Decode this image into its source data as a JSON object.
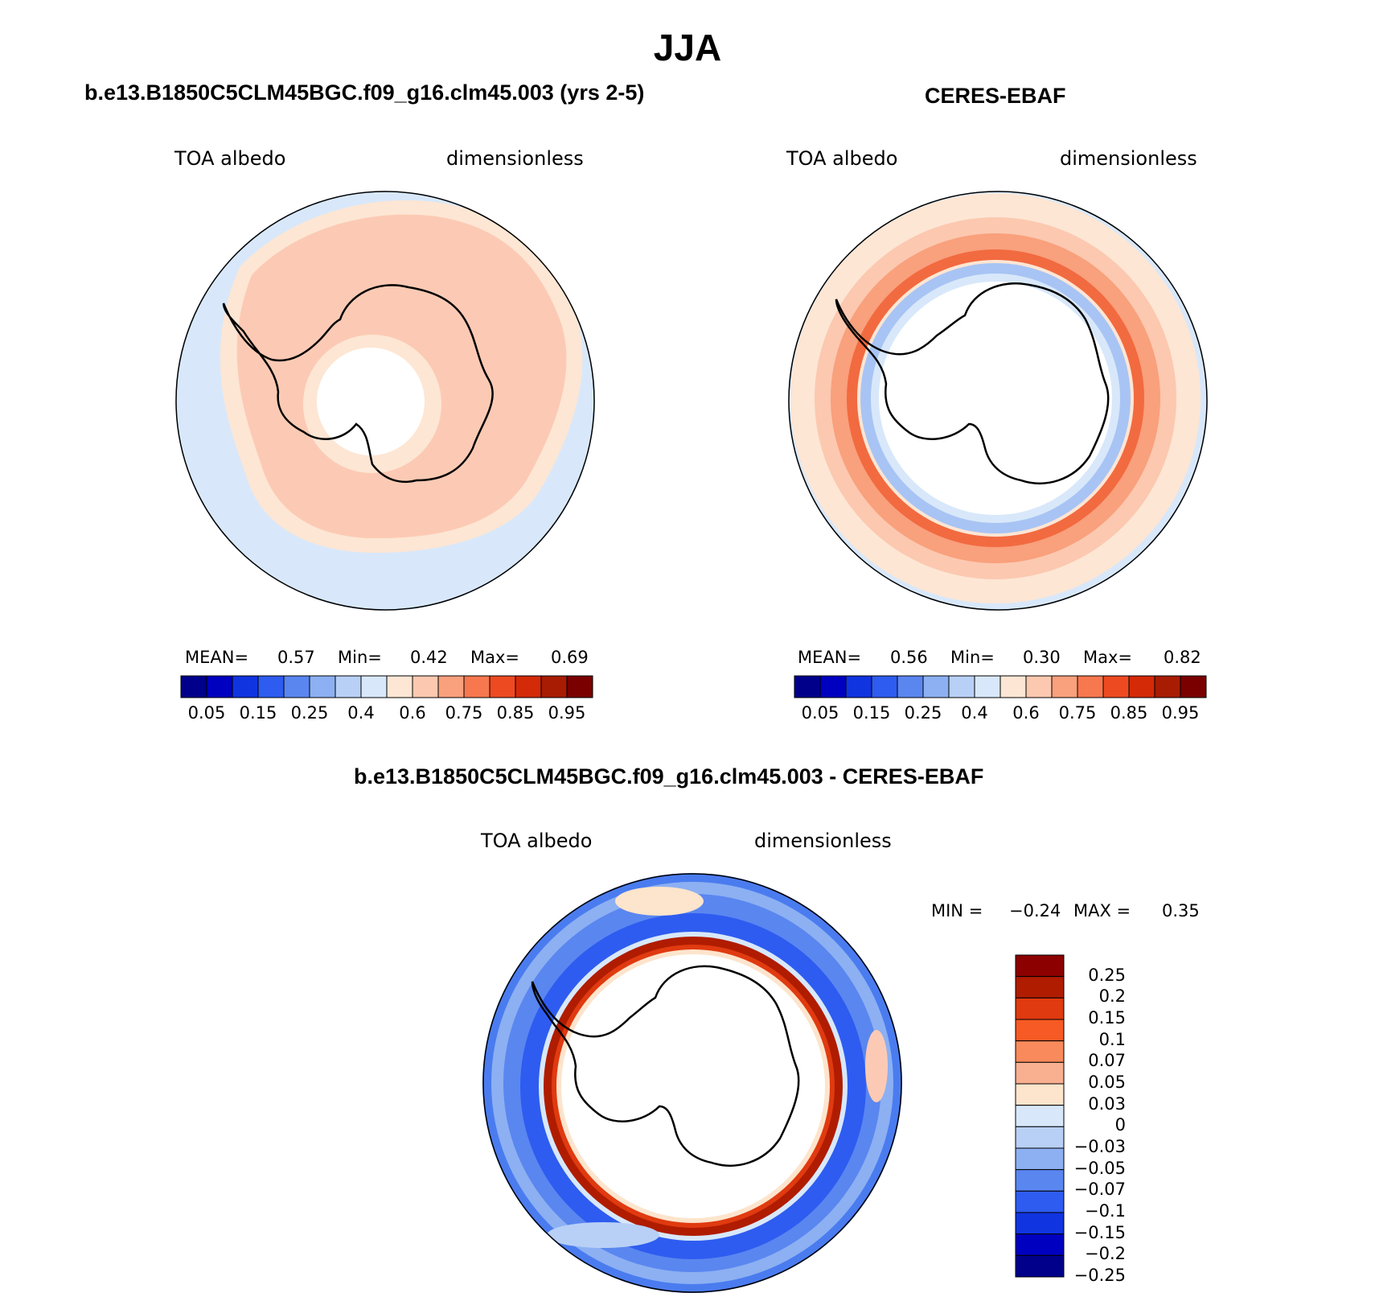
{
  "season": "JJA",
  "panels": {
    "model": {
      "title": "b.e13.B1850C5CLM45BGC.f09_g16.clm45.003 (yrs 2-5)",
      "variable": "TOA albedo",
      "units": "dimensionless",
      "mean_label": "MEAN=",
      "mean_value": "0.57",
      "min_label": "Min=",
      "min_value": "0.42",
      "max_label": "Max=",
      "max_value": "0.69"
    },
    "obs": {
      "title": "CERES-EBAF",
      "variable": "TOA albedo",
      "units": "dimensionless",
      "mean_label": "MEAN=",
      "mean_value": "0.56",
      "min_label": "Min=",
      "min_value": "0.30",
      "max_label": "Max=",
      "max_value": "0.82"
    },
    "diff": {
      "title": "b.e13.B1850C5CLM45BGC.f09_g16.clm45.003 - CERES-EBAF",
      "variable": "TOA albedo",
      "units": "dimensionless",
      "min_label": "MIN =",
      "min_value": "−0.24",
      "max_label": "MAX =",
      "max_value": "0.35"
    }
  },
  "colorbar_abs": {
    "colors": [
      "#00008b",
      "#0000c0",
      "#1034e0",
      "#2e5cf0",
      "#5a86f0",
      "#8cb0f2",
      "#b8d0f6",
      "#d8e8fa",
      "#fde6d4",
      "#fcc8b0",
      "#f9a07c",
      "#f7784e",
      "#ee4a22",
      "#d42a08",
      "#a81c04",
      "#7a0000"
    ],
    "labels": [
      "0.05",
      "0.15",
      "0.25",
      "0.4",
      "0.6",
      "0.75",
      "0.85",
      "0.95"
    ]
  },
  "colorbar_diff": {
    "colors": [
      "#8c0000",
      "#b01c00",
      "#e03a10",
      "#f75a24",
      "#f88a5c",
      "#f8b090",
      "#fde4cc",
      "#d8e8fa",
      "#b8d0f6",
      "#8cb0f2",
      "#5a86f0",
      "#2e5cf0",
      "#1034e0",
      "#0000c0",
      "#00008b"
    ],
    "labels": [
      "0.25",
      "0.2",
      "0.15",
      "0.1",
      "0.07",
      "0.05",
      "0.03",
      "0",
      "−0.03",
      "−0.05",
      "−0.07",
      "−0.1",
      "−0.15",
      "−0.2",
      "−0.25"
    ]
  }
}
